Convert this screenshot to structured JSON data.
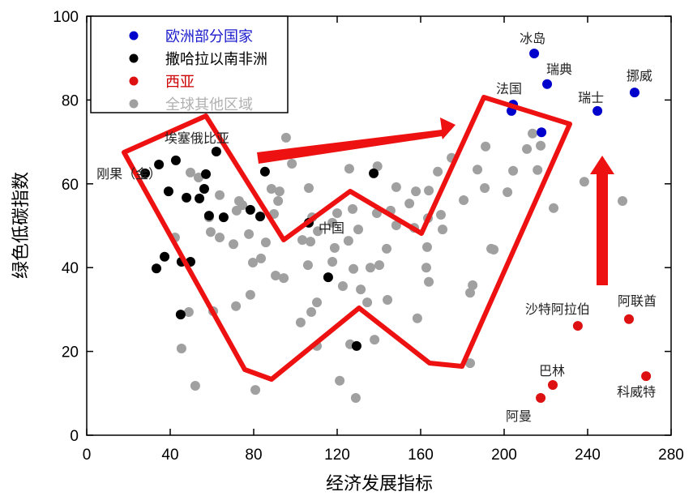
{
  "chart_data": {
    "type": "scatter",
    "xlabel": "经济发展指标",
    "ylabel": "绿色低碳指数",
    "xlim": [
      0,
      280
    ],
    "ylim": [
      0,
      100
    ],
    "xticks": [
      0,
      40,
      80,
      120,
      160,
      200,
      240,
      280
    ],
    "yticks": [
      0,
      20,
      40,
      60,
      80,
      100
    ],
    "legend_position": "top-left",
    "series": [
      {
        "name": "欧洲部分国家",
        "color": "#0000cc",
        "points": [
          [
            214.4,
            91.1
          ],
          [
            220.6,
            83.8
          ],
          [
            262.5,
            81.8
          ],
          [
            244.7,
            77.4
          ],
          [
            203.5,
            77.4
          ],
          [
            204.3,
            78.9
          ],
          [
            217.9,
            72.3
          ]
        ]
      },
      {
        "name": "撒哈拉以南非洲",
        "color": "#000000",
        "points": [
          [
            62.1,
            67.7
          ],
          [
            42.7,
            65.6
          ],
          [
            34.6,
            64.6
          ],
          [
            28.0,
            62.5
          ],
          [
            57.1,
            62.3
          ],
          [
            85.4,
            62.9
          ],
          [
            56.3,
            58.8
          ],
          [
            39.2,
            58.2
          ],
          [
            47.8,
            56.7
          ],
          [
            54.0,
            56.5
          ],
          [
            58.6,
            52.4
          ],
          [
            65.6,
            52.0
          ],
          [
            78.4,
            53.8
          ],
          [
            83.1,
            52.2
          ],
          [
            37.3,
            42.6
          ],
          [
            33.4,
            39.8
          ],
          [
            45.4,
            41.4
          ],
          [
            49.7,
            41.4
          ],
          [
            45.0,
            28.8
          ],
          [
            137.5,
            62.5
          ],
          [
            106.4,
            50.7
          ],
          [
            115.7,
            37.7
          ],
          [
            129.3,
            21.3
          ]
        ]
      },
      {
        "name": "西亚",
        "color": "#dd1111",
        "points": [
          [
            235.3,
            26.1
          ],
          [
            259.8,
            27.7
          ],
          [
            223.3,
            12.0
          ],
          [
            217.5,
            8.9
          ],
          [
            268.0,
            14.1
          ]
        ]
      },
      {
        "name": "全球其他区域",
        "color": "#a0a0a0",
        "points": [
          [
            95.5,
            71.0
          ],
          [
            49.7,
            62.7
          ],
          [
            53.6,
            61.5
          ],
          [
            98.3,
            64.8
          ],
          [
            63.7,
            57.3
          ],
          [
            88.5,
            58.8
          ],
          [
            92.4,
            58.2
          ],
          [
            91.7,
            55.9
          ],
          [
            73.0,
            55.9
          ],
          [
            71.8,
            53.6
          ],
          [
            74.6,
            54.9
          ],
          [
            58.6,
            52.0
          ],
          [
            89.7,
            52.8
          ],
          [
            59.4,
            48.5
          ],
          [
            63.7,
            47.2
          ],
          [
            70.3,
            45.6
          ],
          [
            77.7,
            48.0
          ],
          [
            85.8,
            46.0
          ],
          [
            42.3,
            47.2
          ],
          [
            79.6,
            41.2
          ],
          [
            83.5,
            42.2
          ],
          [
            90.5,
            38.1
          ],
          [
            94.4,
            37.5
          ],
          [
            78.4,
            33.5
          ],
          [
            71.5,
            30.8
          ],
          [
            60.6,
            29.6
          ],
          [
            48.9,
            29.4
          ],
          [
            45.4,
            20.7
          ],
          [
            52.0,
            11.8
          ],
          [
            80.8,
            10.8
          ],
          [
            191.1,
            68.9
          ],
          [
            210.9,
            68.3
          ],
          [
            174.8,
            66.2
          ],
          [
            168.2,
            62.9
          ],
          [
            187.2,
            63.4
          ],
          [
            204.3,
            63.1
          ],
          [
            125.8,
            63.6
          ],
          [
            139.3,
            64.2
          ],
          [
            106.4,
            59.0
          ],
          [
            148.3,
            59.2
          ],
          [
            157.7,
            58.2
          ],
          [
            163.9,
            58.4
          ],
          [
            190.7,
            59.0
          ],
          [
            201.6,
            58.0
          ],
          [
            154.6,
            55.3
          ],
          [
            180.6,
            56.1
          ],
          [
            127.4,
            54.0
          ],
          [
            120.0,
            53.0
          ],
          [
            139.0,
            53.0
          ],
          [
            145.6,
            53.6
          ],
          [
            163.5,
            51.8
          ],
          [
            169.7,
            52.6
          ],
          [
            108.0,
            52.0
          ],
          [
            117.7,
            50.7
          ],
          [
            130.1,
            49.1
          ],
          [
            110.7,
            48.7
          ],
          [
            103.3,
            46.6
          ],
          [
            107.2,
            46.2
          ],
          [
            125.4,
            46.4
          ],
          [
            148.3,
            50.1
          ],
          [
            156.9,
            49.5
          ],
          [
            170.5,
            49.1
          ],
          [
            118.8,
            44.7
          ],
          [
            143.7,
            44.5
          ],
          [
            163.1,
            44.9
          ],
          [
            195.0,
            44.3
          ],
          [
            117.7,
            41.4
          ],
          [
            106.0,
            40.6
          ],
          [
            127.8,
            39.7
          ],
          [
            135.9,
            40.0
          ],
          [
            140.2,
            40.6
          ],
          [
            162.7,
            40.0
          ],
          [
            163.9,
            36.6
          ],
          [
            122.7,
            35.6
          ],
          [
            131.3,
            34.8
          ],
          [
            184.9,
            35.8
          ],
          [
            183.7,
            34.0
          ],
          [
            110.3,
            31.7
          ],
          [
            107.6,
            29.4
          ],
          [
            134.4,
            31.7
          ],
          [
            144.1,
            32.3
          ],
          [
            102.5,
            26.9
          ],
          [
            158.4,
            27.9
          ],
          [
            110.3,
            21.3
          ],
          [
            126.2,
            21.7
          ],
          [
            137.9,
            22.8
          ],
          [
            183.7,
            17.2
          ],
          [
            121.2,
            13.0
          ],
          [
            128.9,
            8.9
          ],
          [
            213.6,
            72.0
          ],
          [
            217.5,
            69.1
          ],
          [
            216.0,
            63.3
          ],
          [
            238.4,
            60.5
          ],
          [
            223.7,
            54.2
          ],
          [
            256.7,
            55.9
          ],
          [
            193.8,
            44.5
          ]
        ]
      }
    ],
    "annotations": [
      {
        "text": "冰岛",
        "x": 214.4,
        "y": 91.1
      },
      {
        "text": "瑞典",
        "x": 220.6,
        "y": 83.8
      },
      {
        "text": "挪威",
        "x": 262.5,
        "y": 81.8
      },
      {
        "text": "瑞士",
        "x": 244.7,
        "y": 77.4
      },
      {
        "text": "法国",
        "x": 203.5,
        "y": 77.4
      },
      {
        "text": "埃塞俄比亚",
        "x": 62.1,
        "y": 67.7
      },
      {
        "text": "刚果（金）",
        "x": 28.0,
        "y": 62.5
      },
      {
        "text": "中国",
        "x": 106.4,
        "y": 50.7
      },
      {
        "text": "沙特阿拉伯",
        "x": 235.3,
        "y": 26.1
      },
      {
        "text": "阿联酋",
        "x": 259.8,
        "y": 27.7
      },
      {
        "text": "巴林",
        "x": 223.3,
        "y": 12.0
      },
      {
        "text": "阿曼",
        "x": 217.5,
        "y": 8.9
      },
      {
        "text": "科威特",
        "x": 268.0,
        "y": 14.1
      }
    ]
  }
}
